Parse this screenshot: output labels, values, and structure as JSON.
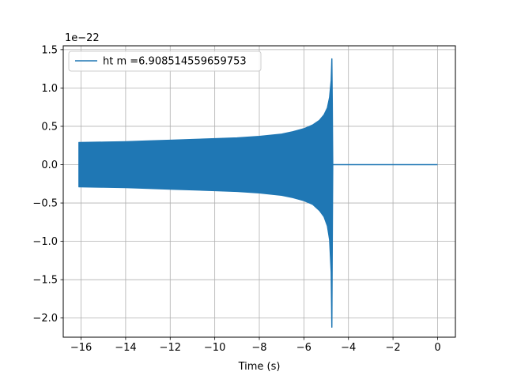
{
  "chart_data": {
    "type": "line",
    "title": "",
    "xlabel": "Time (s)",
    "ylabel": "",
    "y_offset_label": "1e−22",
    "xlim": [
      -16.8,
      0.8
    ],
    "ylim": [
      -2.25,
      1.55
    ],
    "xticks": [
      -16,
      -14,
      -12,
      -10,
      -8,
      -6,
      -4,
      -2,
      0
    ],
    "xtick_labels": [
      "−16",
      "−14",
      "−12",
      "−10",
      "−8",
      "−6",
      "−4",
      "−2",
      "0"
    ],
    "yticks": [
      -2.0,
      -1.5,
      -1.0,
      -0.5,
      0.0,
      0.5,
      1.0,
      1.5
    ],
    "ytick_labels": [
      "−2.0",
      "−1.5",
      "−1.0",
      "−0.5",
      "0.0",
      "0.5",
      "1.0",
      "1.5"
    ],
    "grid": true,
    "legend_position": "top-left",
    "color": "#1f77b4",
    "series": [
      {
        "name": "ht m =6.908514559659753",
        "description": "chirp waveform envelope (values in units of 1e-22)",
        "x": [
          -16.1,
          -15.0,
          -14.0,
          -13.0,
          -12.0,
          -11.0,
          -10.0,
          -9.0,
          -8.0,
          -7.0,
          -6.5,
          -6.0,
          -5.6,
          -5.3,
          -5.1,
          -4.95,
          -4.85,
          -4.78,
          -4.75,
          -4.74,
          -4.72,
          -4.7,
          -4.0,
          -2.0,
          0.0
        ],
        "upper": [
          0.29,
          0.295,
          0.3,
          0.31,
          0.32,
          0.33,
          0.34,
          0.35,
          0.37,
          0.4,
          0.43,
          0.47,
          0.52,
          0.58,
          0.65,
          0.74,
          0.88,
          1.1,
          1.38,
          1.38,
          0.8,
          0.0,
          0.0,
          0.0,
          0.0
        ],
        "lower": [
          -0.29,
          -0.295,
          -0.3,
          -0.31,
          -0.32,
          -0.33,
          -0.34,
          -0.35,
          -0.37,
          -0.4,
          -0.43,
          -0.47,
          -0.52,
          -0.6,
          -0.68,
          -0.8,
          -0.98,
          -1.4,
          -2.12,
          -2.12,
          -1.0,
          0.0,
          0.0,
          0.0,
          0.0
        ]
      }
    ]
  }
}
